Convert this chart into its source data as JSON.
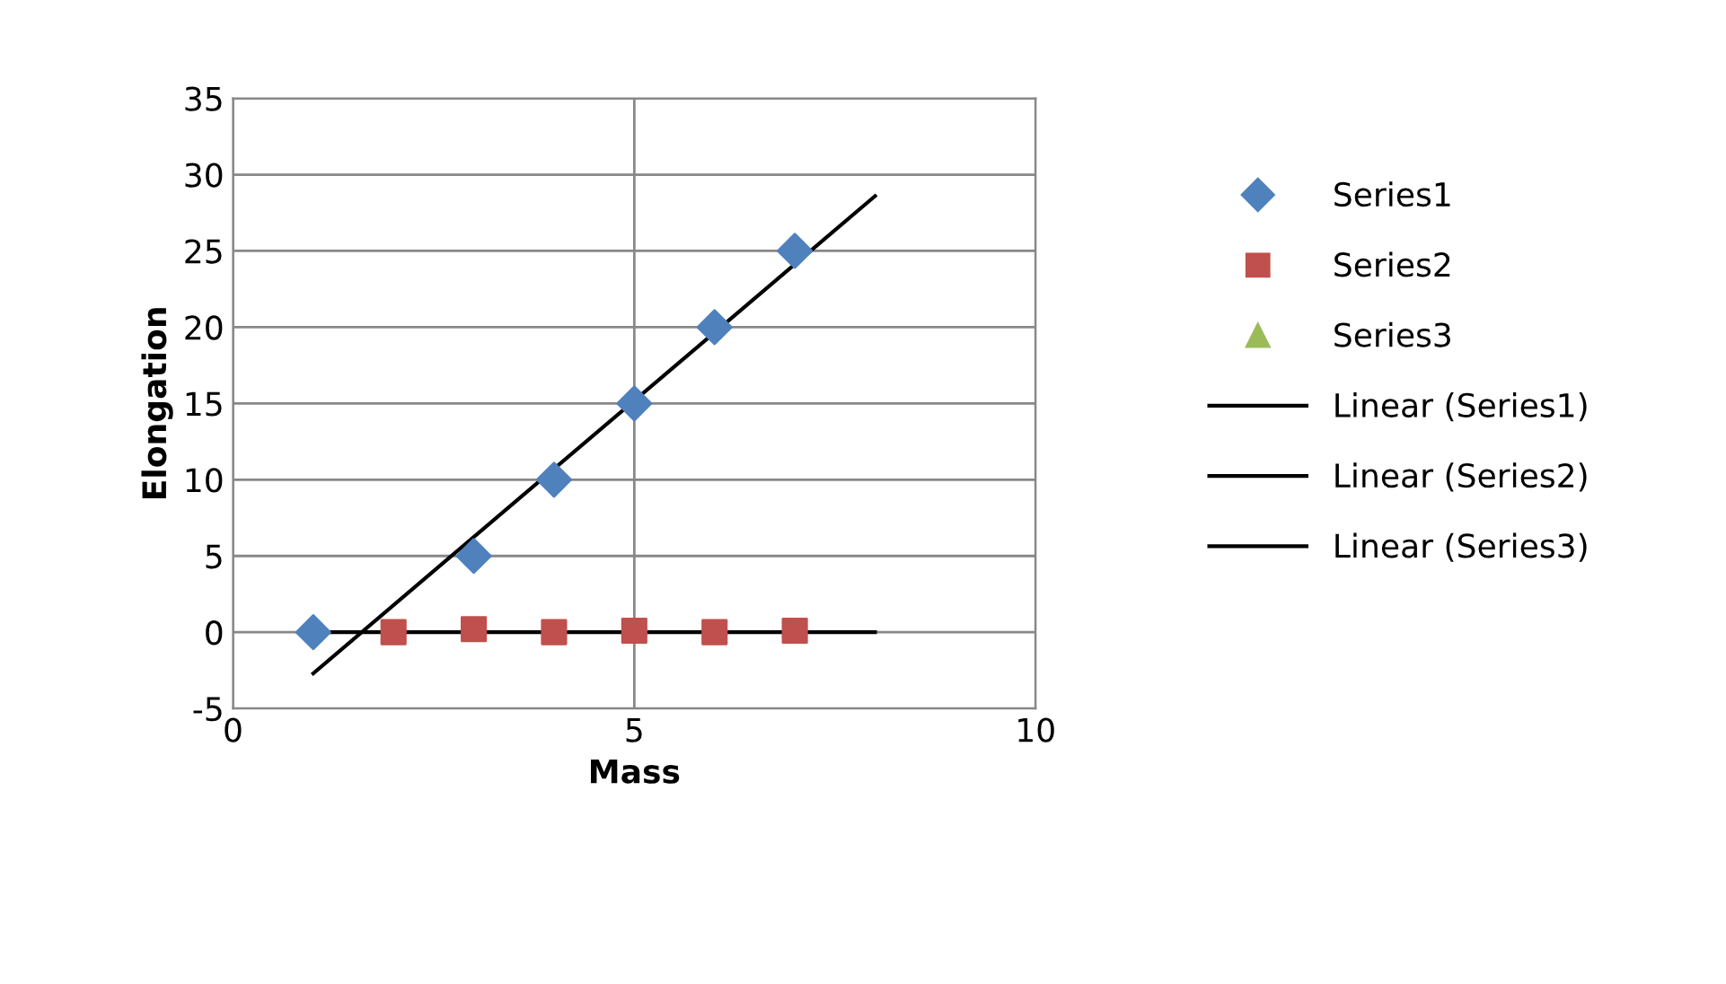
{
  "chart_data": {
    "type": "scatter",
    "xlabel": "Mass",
    "ylabel": "Elongation",
    "xlim": [
      0,
      10
    ],
    "xticks": [
      0,
      5,
      10
    ],
    "ylim": [
      -5,
      35
    ],
    "yticks": [
      -5,
      0,
      5,
      10,
      15,
      20,
      25,
      30,
      35
    ],
    "grid": true,
    "legend": "right",
    "series": [
      {
        "name": "Series1",
        "marker": "diamond",
        "color": "#4f81bd",
        "x": [
          1,
          3,
          4,
          5,
          6,
          7
        ],
        "values": [
          0,
          5,
          10,
          15,
          20,
          25
        ]
      },
      {
        "name": "Series2",
        "marker": "square",
        "color": "#c0504d",
        "x": [
          2,
          3,
          4,
          5,
          6,
          7
        ],
        "values": [
          0,
          0.2,
          0,
          0.1,
          0,
          0.1
        ]
      },
      {
        "name": "Series3",
        "marker": "triangle",
        "color": "#9bbb59"
      },
      {
        "name": "Linear (Series1)",
        "type": "line",
        "marker": "none",
        "color": "#000000",
        "x": [
          1,
          8
        ],
        "values": [
          -2.7,
          28.6
        ]
      },
      {
        "name": "Linear (Series2)",
        "type": "line",
        "marker": "none",
        "color": "#000000",
        "x": [
          1,
          8
        ],
        "values": [
          0,
          0
        ]
      },
      {
        "name": "Linear (Series3)",
        "type": "line",
        "marker": "none",
        "color": "#000000"
      }
    ]
  }
}
